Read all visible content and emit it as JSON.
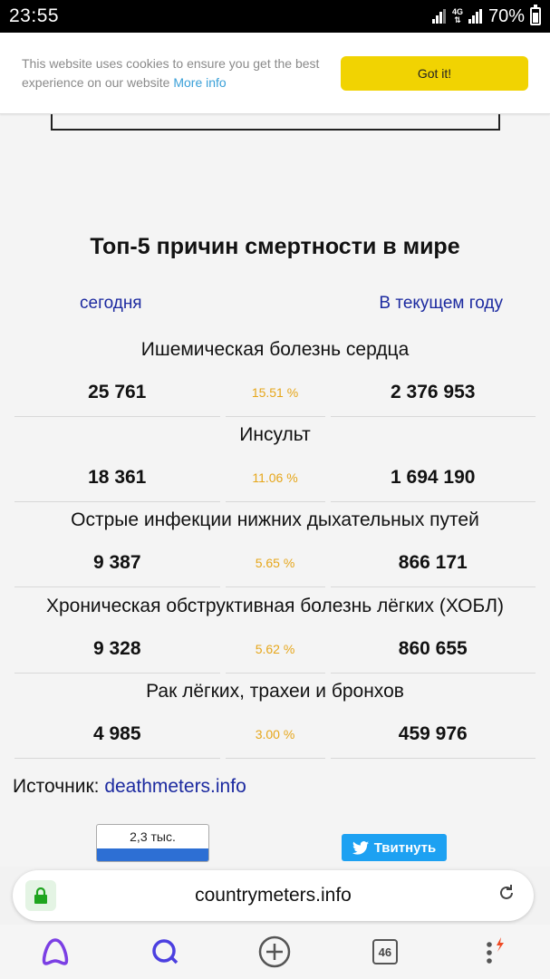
{
  "status_bar": {
    "time": "23:55",
    "network": "4G",
    "battery": "70%",
    "battery_level": 0.7
  },
  "cookie_banner": {
    "text": "This website uses cookies to ensure you get the best experience on our website",
    "link": "More info",
    "button": "Got it!"
  },
  "section": {
    "title": "Топ-5 причин смертности в мире",
    "period_left": "сегодня",
    "period_right": "В текущем году"
  },
  "causes": [
    {
      "name": "Ишемическая болезнь сердца",
      "today": "25 761",
      "percent": "15.51 %",
      "year": "2 376 953"
    },
    {
      "name": "Инсульт",
      "today": "18 361",
      "percent": "11.06 %",
      "year": "1 694 190"
    },
    {
      "name": "Острые инфекции нижних дыхательных путей",
      "today": "9 387",
      "percent": "5.65 %",
      "year": "866 171"
    },
    {
      "name": "Хроническая обструктивная болезнь лёгких (ХОБЛ)",
      "today": "9 328",
      "percent": "5.62 %",
      "year": "860 655"
    },
    {
      "name": "Рак лёгких, трахеи и бронхов",
      "today": "4 985",
      "percent": "3.00 %",
      "year": "459 976"
    }
  ],
  "source": {
    "label": "Источник:",
    "link": "deathmeters.info"
  },
  "share": {
    "count": "2,3 тыс.",
    "tweet": "Твитнуть"
  },
  "browser": {
    "url": "countrymeters.info",
    "tabs_count": "46"
  },
  "colors": {
    "link_blue": "#1c2aa0",
    "percent_orange": "#e6a61a",
    "cookie_button": "#f1d302",
    "twitter": "#1da1f2",
    "alice_purple": "#7b3fe4"
  }
}
